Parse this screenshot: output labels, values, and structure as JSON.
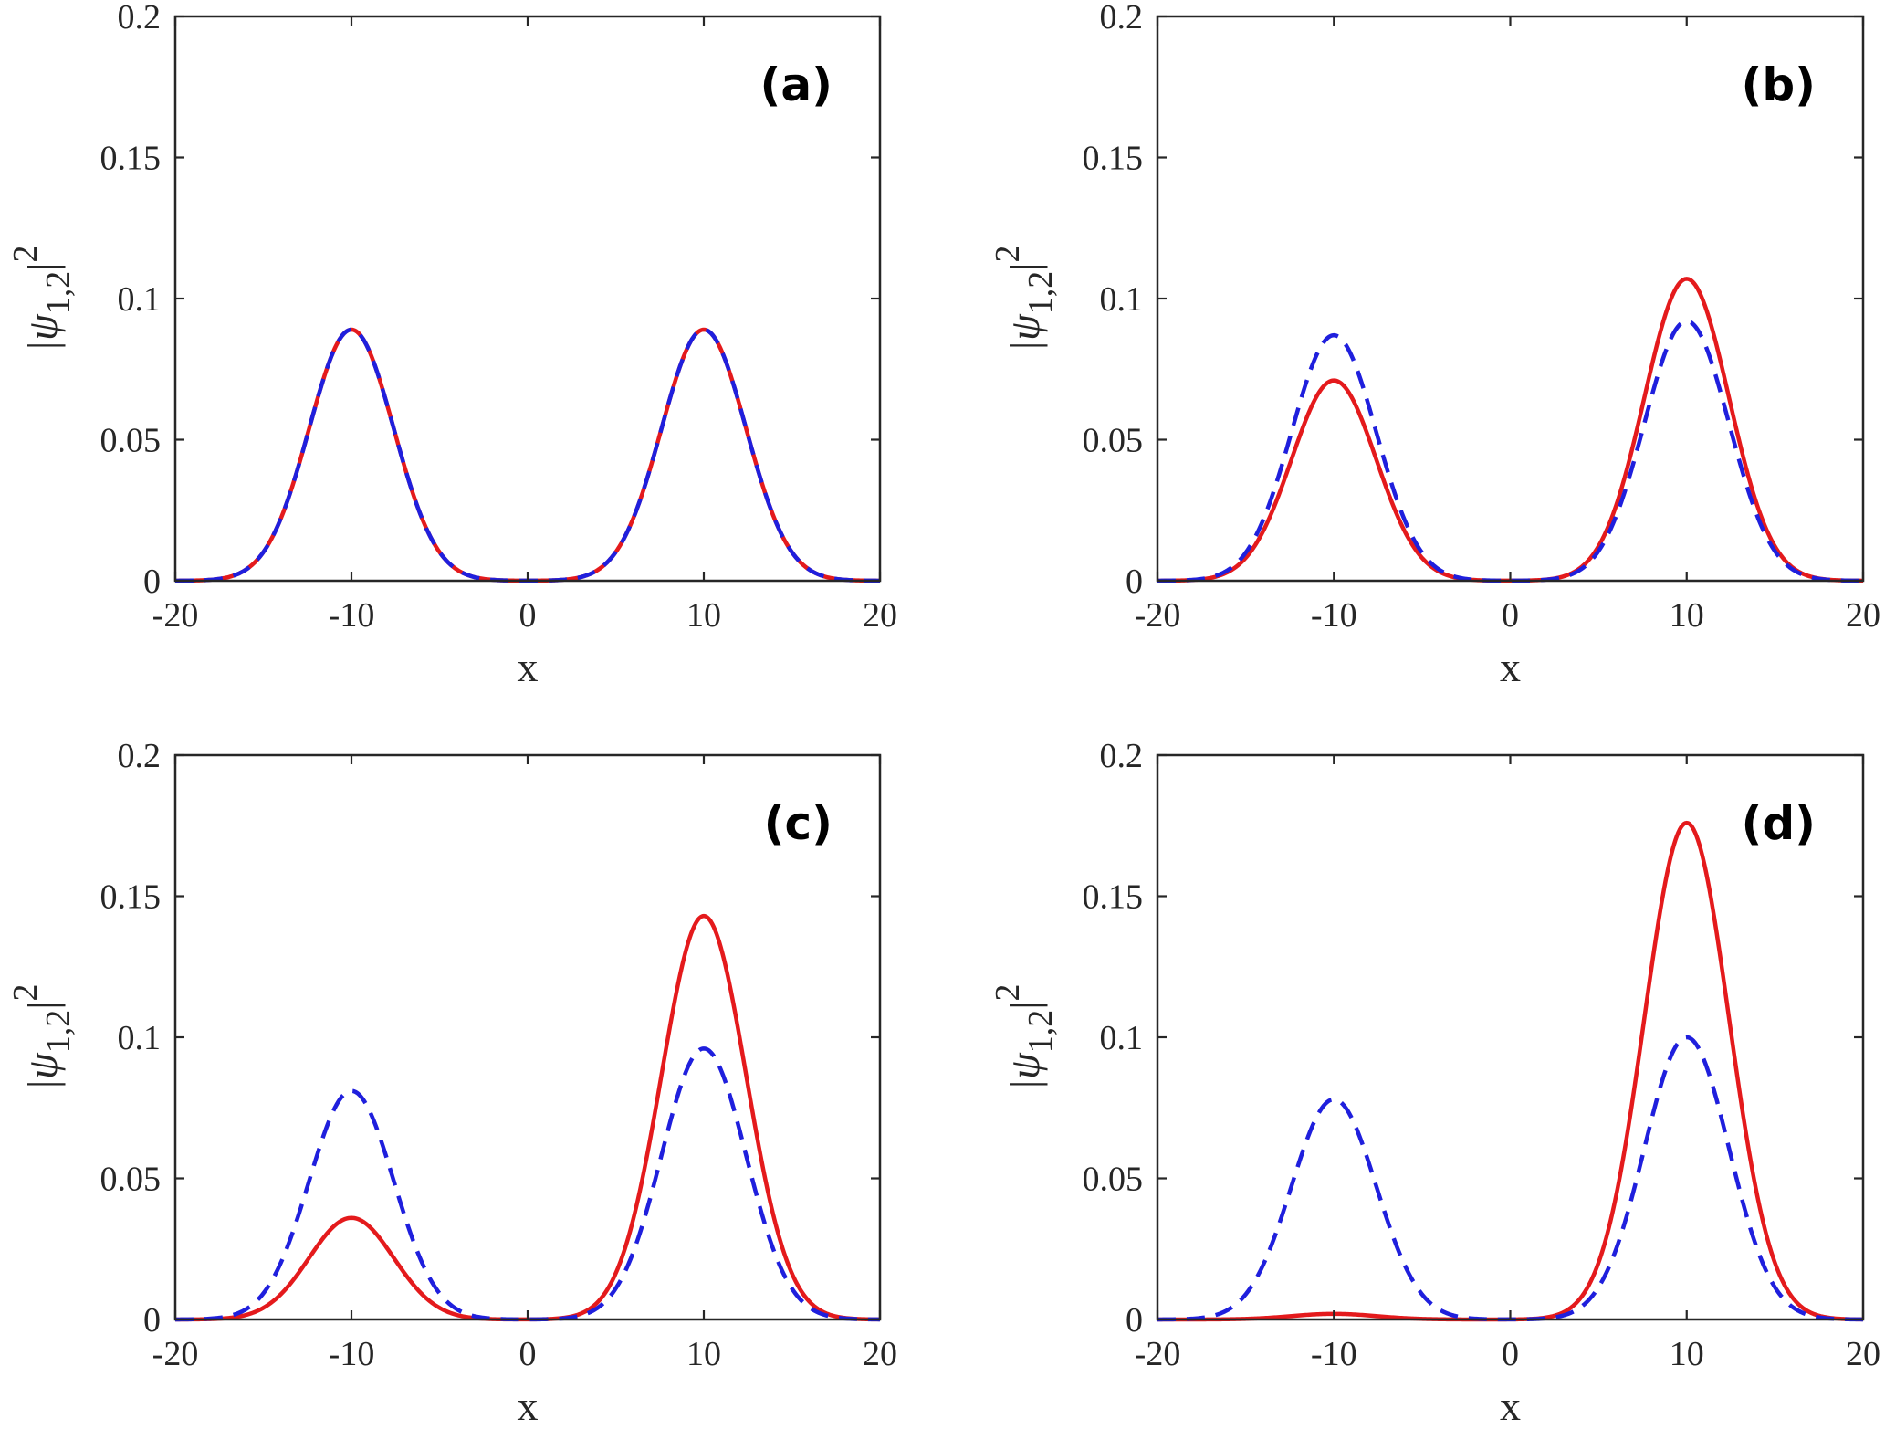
{
  "chart_data": [
    {
      "type": "line",
      "panel_label": "(a)",
      "xlabel": "x",
      "ylabel_base": "|ψ",
      "ylabel_sub": "1,2",
      "ylabel_sup": "2",
      "xlim": [
        -20,
        20
      ],
      "ylim": [
        0,
        0.2
      ],
      "xticks": [
        "-20",
        "-10",
        "0",
        "10",
        "20"
      ],
      "yticks": [
        "0",
        "0.05",
        "0.1",
        "0.15",
        "0.2"
      ],
      "grid": false,
      "series": [
        {
          "color": "#e41a1c",
          "style": "solid",
          "peaks": [
            {
              "center": -10,
              "height": 0.089,
              "width": 2.4
            },
            {
              "center": 10,
              "height": 0.089,
              "width": 2.4
            }
          ]
        },
        {
          "color": "#1f1fdd",
          "style": "dashed",
          "peaks": [
            {
              "center": -10,
              "height": 0.089,
              "width": 2.4
            },
            {
              "center": 10,
              "height": 0.089,
              "width": 2.4
            }
          ]
        }
      ]
    },
    {
      "type": "line",
      "panel_label": "(b)",
      "xlabel": "x",
      "ylabel_base": "|ψ",
      "ylabel_sub": "1,2",
      "ylabel_sup": "2",
      "xlim": [
        -20,
        20
      ],
      "ylim": [
        0,
        0.2
      ],
      "xticks": [
        "-20",
        "-10",
        "0",
        "10",
        "20"
      ],
      "yticks": [
        "0",
        "0.05",
        "0.1",
        "0.15",
        "0.2"
      ],
      "grid": false,
      "series": [
        {
          "color": "#e41a1c",
          "style": "solid",
          "peaks": [
            {
              "center": -10,
              "height": 0.071,
              "width": 2.4
            },
            {
              "center": 10,
              "height": 0.107,
              "width": 2.4
            }
          ]
        },
        {
          "color": "#1f1fdd",
          "style": "dashed",
          "peaks": [
            {
              "center": -10,
              "height": 0.087,
              "width": 2.4
            },
            {
              "center": 10,
              "height": 0.092,
              "width": 2.4
            }
          ]
        }
      ]
    },
    {
      "type": "line",
      "panel_label": "(c)",
      "xlabel": "x",
      "ylabel_base": "|ψ",
      "ylabel_sub": "1,2",
      "ylabel_sup": "2",
      "xlim": [
        -20,
        20
      ],
      "ylim": [
        0,
        0.2
      ],
      "xticks": [
        "-20",
        "-10",
        "0",
        "10",
        "20"
      ],
      "yticks": [
        "0",
        "0.05",
        "0.1",
        "0.15",
        "0.2"
      ],
      "grid": false,
      "series": [
        {
          "color": "#e41a1c",
          "style": "solid",
          "peaks": [
            {
              "center": -10,
              "height": 0.036,
              "width": 2.4
            },
            {
              "center": 10,
              "height": 0.143,
              "width": 2.4
            }
          ]
        },
        {
          "color": "#1f1fdd",
          "style": "dashed",
          "peaks": [
            {
              "center": -10,
              "height": 0.081,
              "width": 2.4
            },
            {
              "center": 10,
              "height": 0.096,
              "width": 2.4
            }
          ]
        }
      ]
    },
    {
      "type": "line",
      "panel_label": "(d)",
      "xlabel": "x",
      "ylabel_base": "|ψ",
      "ylabel_sub": "1,2",
      "ylabel_sup": "2",
      "xlim": [
        -20,
        20
      ],
      "ylim": [
        0,
        0.2
      ],
      "xticks": [
        "-20",
        "-10",
        "0",
        "10",
        "20"
      ],
      "yticks": [
        "0",
        "0.05",
        "0.1",
        "0.15",
        "0.2"
      ],
      "grid": false,
      "series": [
        {
          "color": "#e41a1c",
          "style": "solid",
          "peaks": [
            {
              "center": -10,
              "height": 0.002,
              "width": 2.4
            },
            {
              "center": 10,
              "height": 0.176,
              "width": 2.4
            }
          ]
        },
        {
          "color": "#1f1fdd",
          "style": "dashed",
          "peaks": [
            {
              "center": -10,
              "height": 0.078,
              "width": 2.4
            },
            {
              "center": 10,
              "height": 0.1,
              "width": 2.4
            }
          ]
        }
      ]
    }
  ]
}
